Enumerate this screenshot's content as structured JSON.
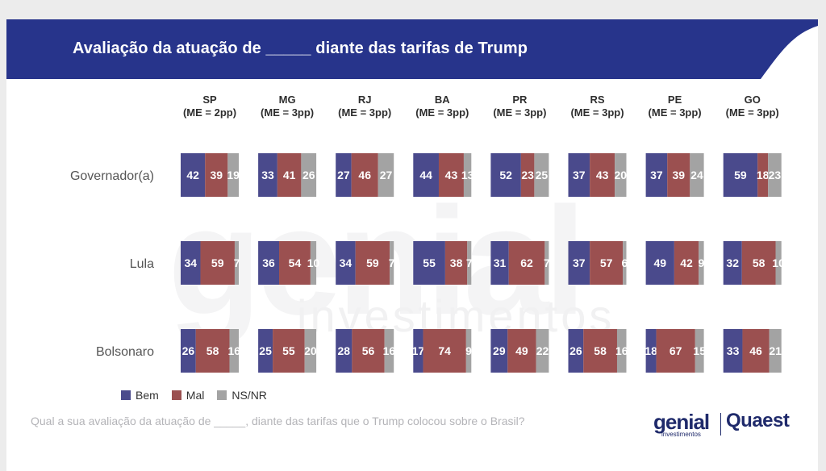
{
  "header": {
    "title": "Avaliação da atuação de _____ diante das tarifas de Trump"
  },
  "watermark": {
    "main": "genial",
    "sub": "investimentos"
  },
  "legend": [
    {
      "name": "Bem",
      "color": "#4a4a8c"
    },
    {
      "name": "Mal",
      "color": "#9b5050"
    },
    {
      "name": "NS/NR",
      "color": "#a3a3a3"
    }
  ],
  "footnote": "Qual a sua avaliação da atuação de _____, diante das tarifas que o Trump colocou sobre o Brasil?",
  "logos": {
    "genial": "genial",
    "genial_sub": "investimentos",
    "quaest": "Quaest"
  },
  "chart_data": {
    "type": "bar",
    "orientation": "horizontal-stacked-100",
    "title": "Avaliação da atuação de _____ diante das tarifas de Trump",
    "columns": [
      {
        "state": "SP",
        "me": "(ME = 2pp)"
      },
      {
        "state": "MG",
        "me": "(ME = 3pp)"
      },
      {
        "state": "RJ",
        "me": "(ME = 3pp)"
      },
      {
        "state": "BA",
        "me": "(ME = 3pp)"
      },
      {
        "state": "PR",
        "me": "(ME = 3pp)"
      },
      {
        "state": "RS",
        "me": "(ME = 3pp)"
      },
      {
        "state": "PE",
        "me": "(ME = 3pp)"
      },
      {
        "state": "GO",
        "me": "(ME = 3pp)"
      }
    ],
    "rows": [
      "Governador(a)",
      "Lula",
      "Bolsonaro"
    ],
    "series_names": [
      "Bem",
      "Mal",
      "NS/NR"
    ],
    "colors": [
      "#4a4a8c",
      "#9b5050",
      "#a3a3a3"
    ],
    "values": [
      [
        [
          42,
          39,
          19
        ],
        [
          33,
          41,
          26
        ],
        [
          27,
          46,
          27
        ],
        [
          44,
          43,
          13
        ],
        [
          52,
          23,
          25
        ],
        [
          37,
          43,
          20
        ],
        [
          37,
          39,
          24
        ],
        [
          59,
          18,
          23
        ]
      ],
      [
        [
          34,
          59,
          7
        ],
        [
          36,
          54,
          10
        ],
        [
          34,
          59,
          7
        ],
        [
          55,
          38,
          7
        ],
        [
          31,
          62,
          7
        ],
        [
          37,
          57,
          6
        ],
        [
          49,
          42,
          9
        ],
        [
          32,
          58,
          10
        ]
      ],
      [
        [
          26,
          58,
          16
        ],
        [
          25,
          55,
          20
        ],
        [
          28,
          56,
          16
        ],
        [
          17,
          74,
          9
        ],
        [
          29,
          49,
          22
        ],
        [
          26,
          58,
          16
        ],
        [
          18,
          67,
          15
        ],
        [
          33,
          46,
          21
        ]
      ]
    ]
  }
}
